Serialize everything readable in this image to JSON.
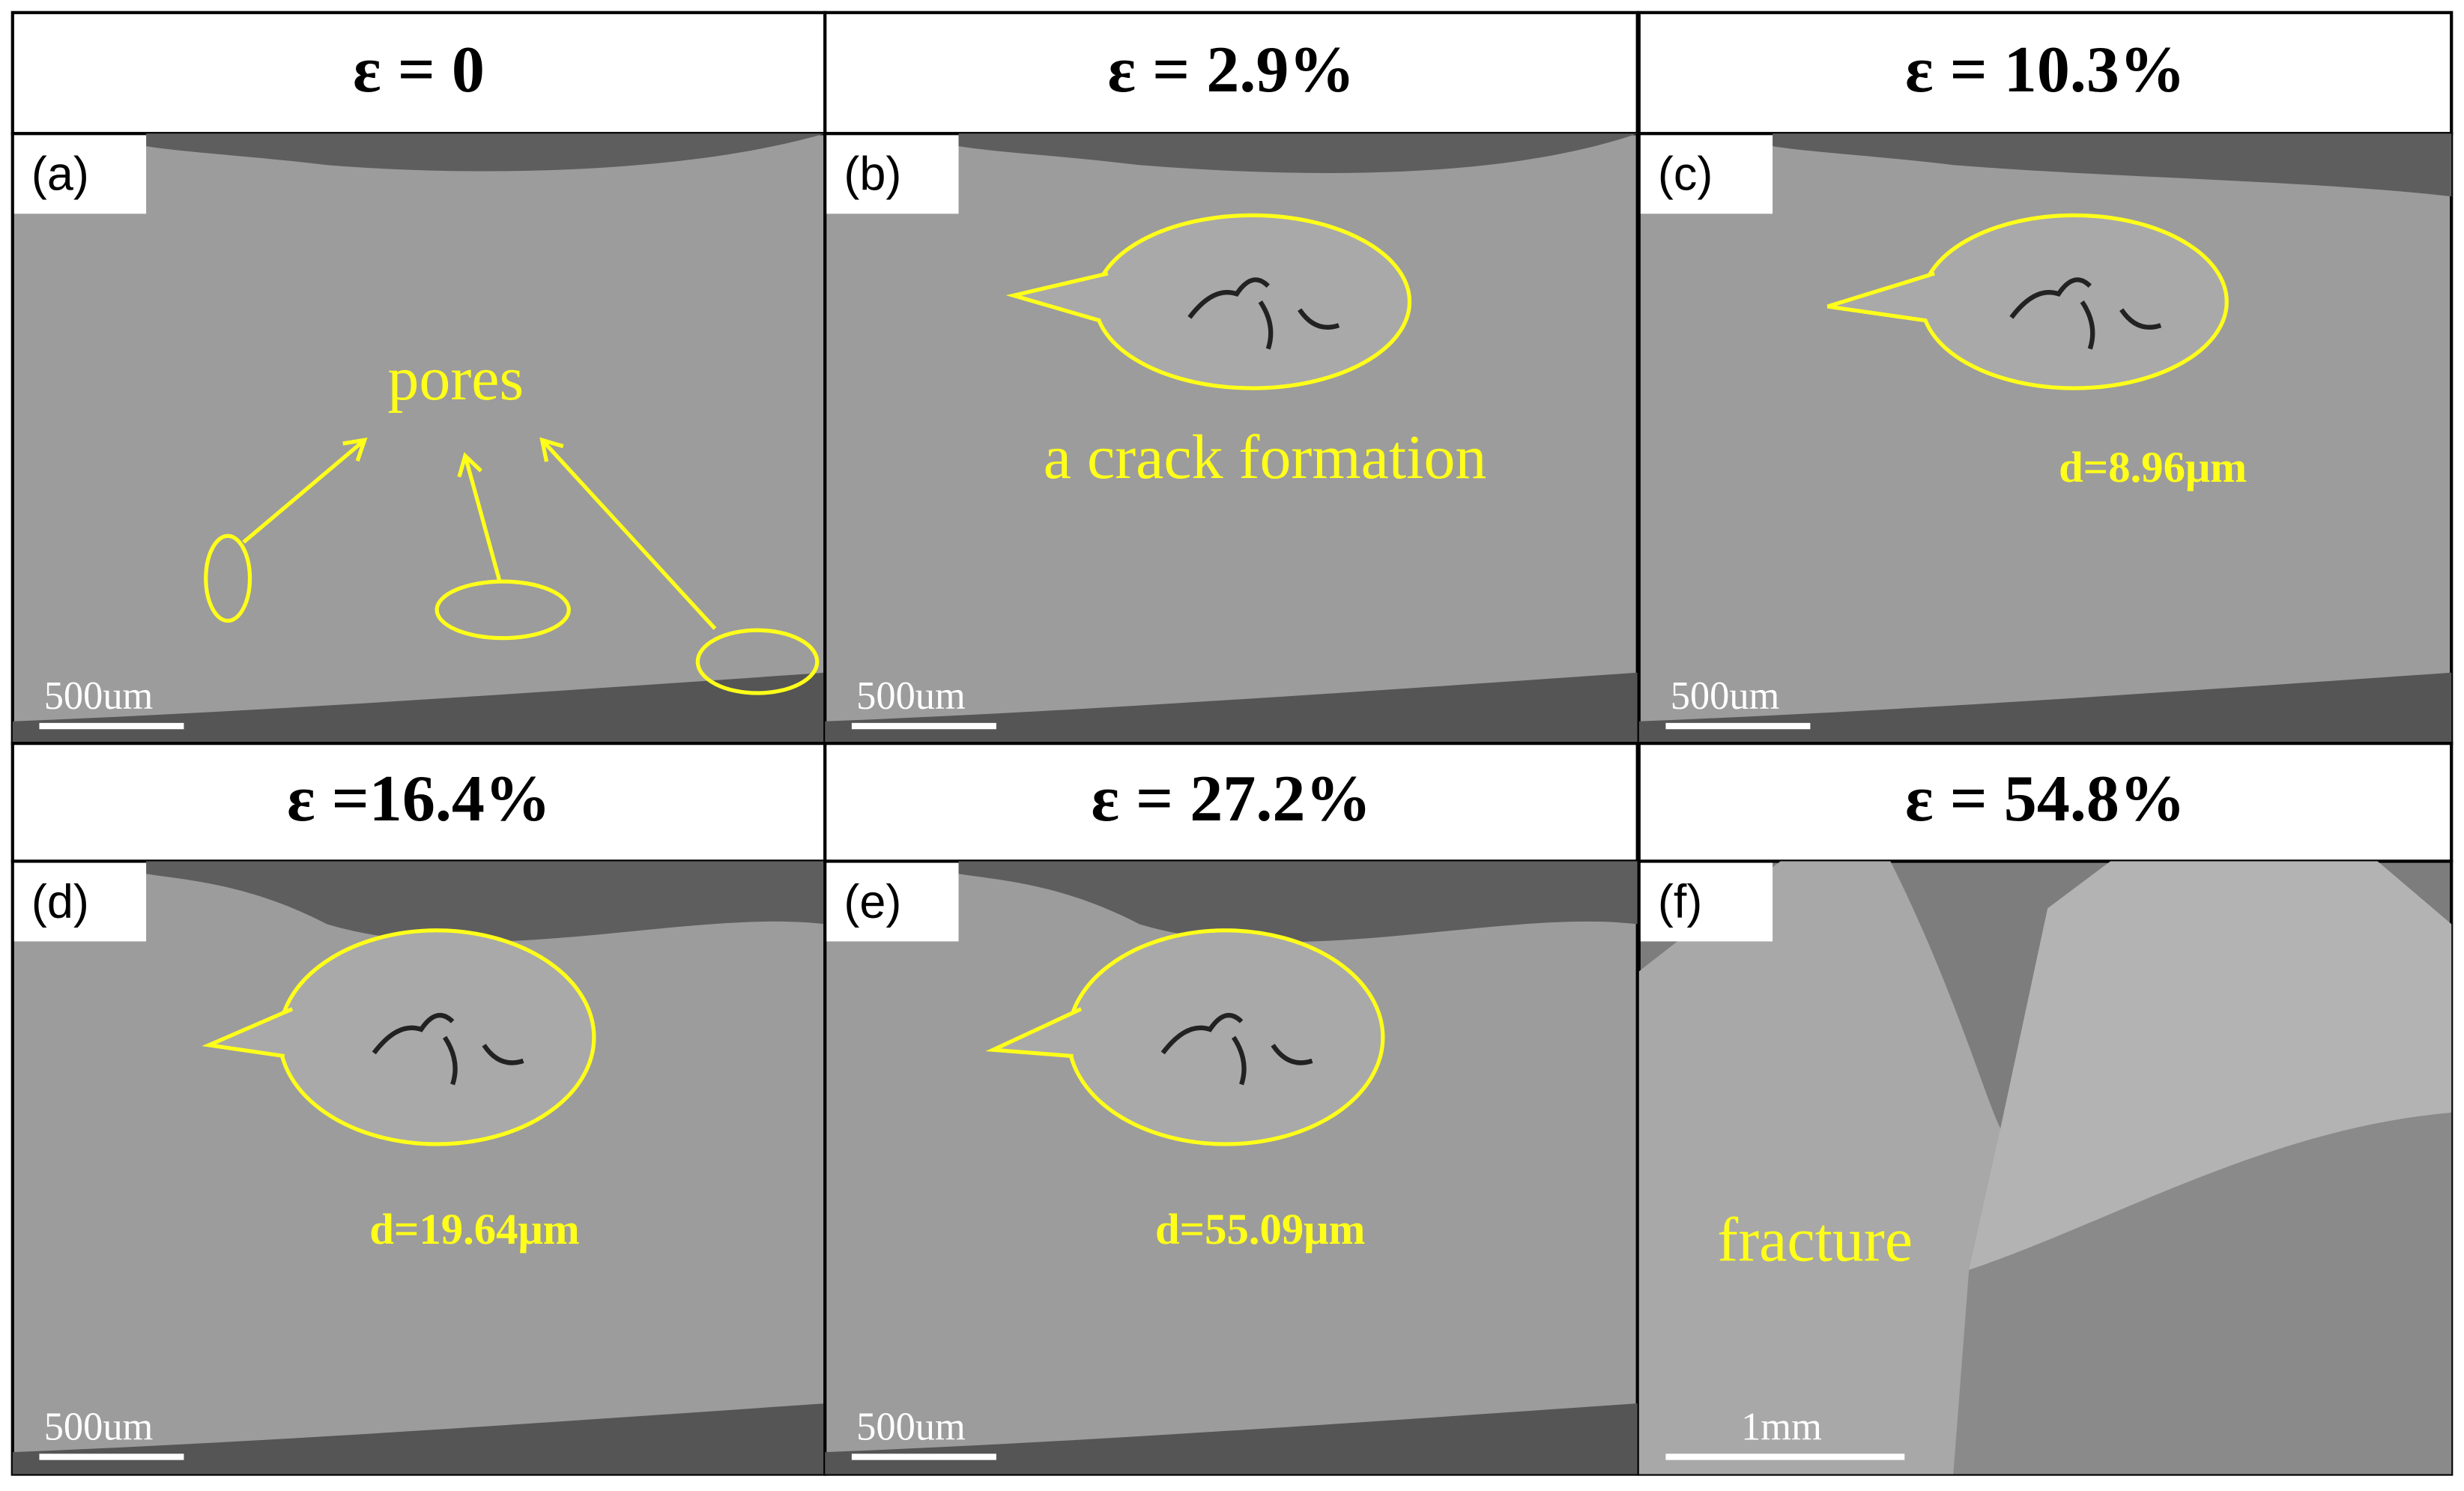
{
  "panels": [
    {
      "header": "ε = 0",
      "label": "(a)",
      "scale_bar": "500um",
      "annotation": "pores"
    },
    {
      "header": "ε = 2.9%",
      "label": "(b)",
      "scale_bar": "500um",
      "annotation": "a crack formation"
    },
    {
      "header": "ε = 10.3%",
      "label": "(c)",
      "scale_bar": "500um",
      "annotation": "d=8.96μm"
    },
    {
      "header": "ε =16.4%",
      "label": "(d)",
      "scale_bar": "500um",
      "annotation": "d=19.64μm"
    },
    {
      "header": "ε = 27.2%",
      "label": "(e)",
      "scale_bar": "500um",
      "annotation": "d=55.09μm"
    },
    {
      "header": "ε = 54.8%",
      "label": "(f)",
      "scale_bar": "1mm",
      "annotation": "fracture"
    }
  ]
}
